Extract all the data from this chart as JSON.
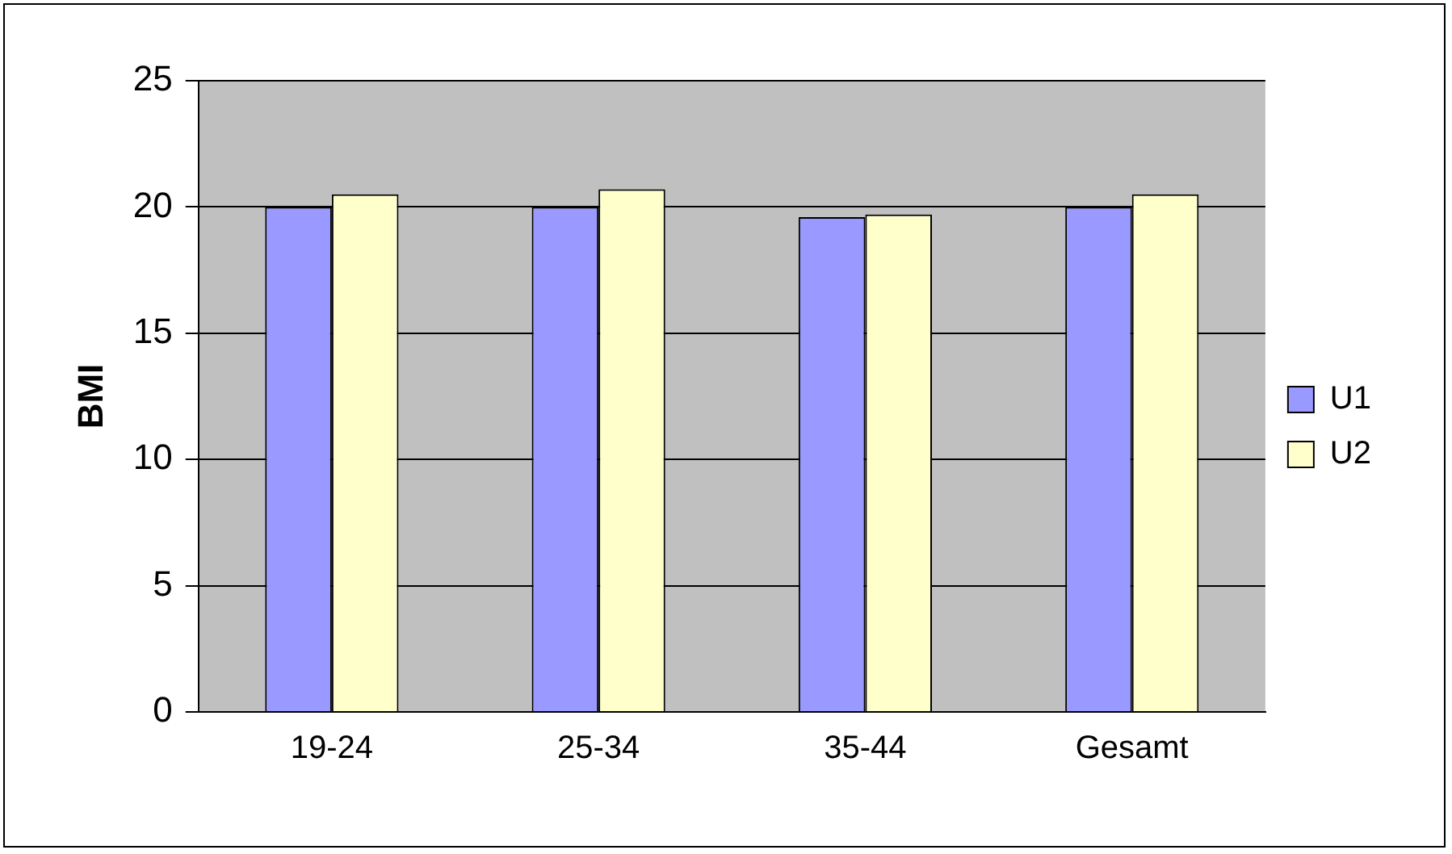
{
  "chart_data": {
    "type": "bar",
    "ylabel": "BMI",
    "categories": [
      "19-24",
      "25-34",
      "35-44",
      "Gesamt"
    ],
    "series": [
      {
        "name": "U1",
        "color": "#9999ff",
        "values": [
          20,
          20,
          19.6,
          20
        ]
      },
      {
        "name": "U2",
        "color": "#ffffcc",
        "values": [
          20.5,
          20.7,
          19.7,
          20.5
        ]
      }
    ],
    "ylim": [
      0,
      25
    ],
    "yticks": [
      0,
      5,
      10,
      15,
      20,
      25
    ],
    "grid": "y",
    "legend": "right"
  }
}
